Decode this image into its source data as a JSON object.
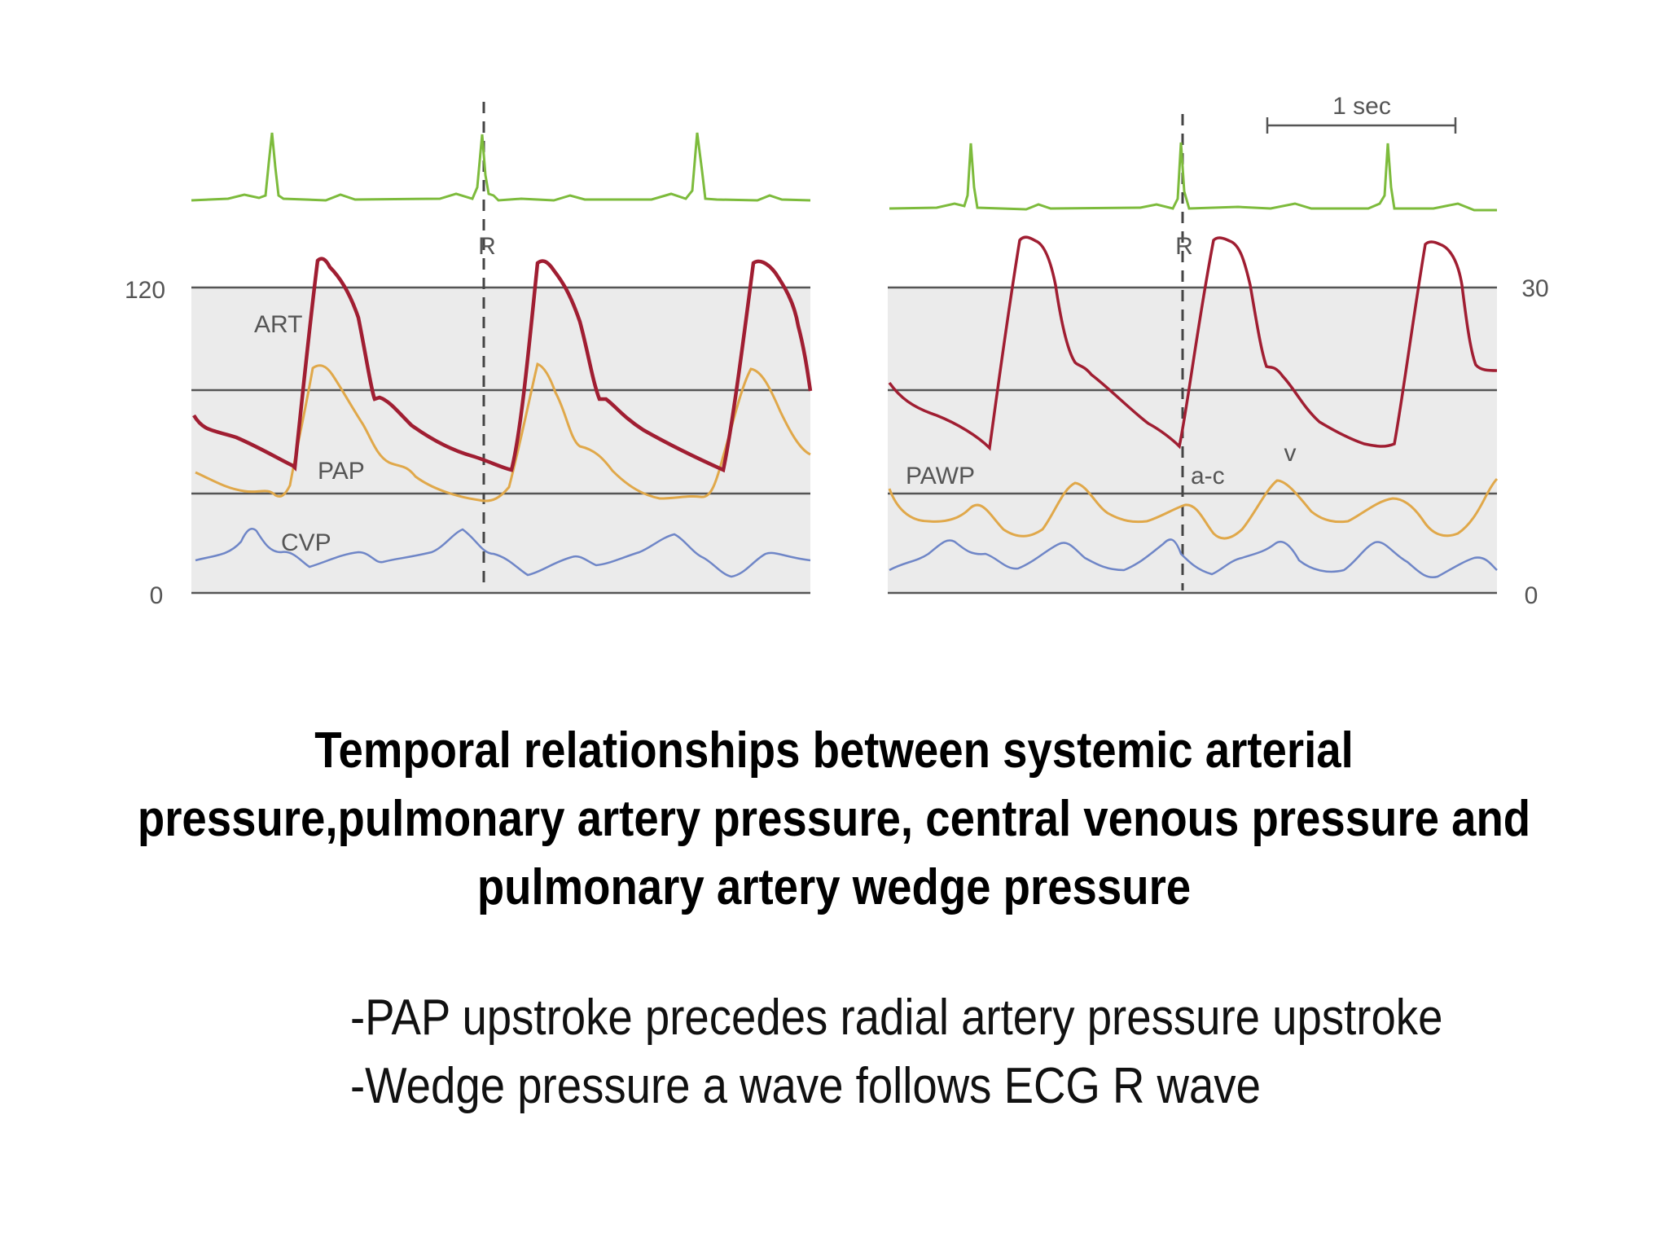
{
  "figure": {
    "left_panel": {
      "axis_top_label": "120",
      "axis_bottom_label": "0",
      "trace_labels": {
        "art": "ART",
        "pap": "PAP",
        "cvp": "CVP"
      },
      "r_marker": "R"
    },
    "right_panel": {
      "axis_top_label": "30",
      "axis_bottom_label": "0",
      "trace_labels": {
        "pawp": "PAWP",
        "a_c": "a-c",
        "v": "v"
      },
      "r_marker": "R",
      "scale_bar_label": "1 sec"
    },
    "colors": {
      "ecg": "#7dbb3c",
      "art": "#a01e32",
      "pap": "#e0a84a",
      "cvp": "#6f86c7",
      "band": "#ebebeb",
      "gridline": "#555555"
    }
  },
  "caption": {
    "line1": "Temporal relationships between systemic arterial",
    "line2": "pressure,pulmonary artery pressure, central venous pressure and",
    "line3": "pulmonary artery wedge pressure"
  },
  "notes": [
    "-PAP upstroke precedes radial artery pressure upstroke",
    "-Wedge pressure a wave follows ECG R wave"
  ]
}
